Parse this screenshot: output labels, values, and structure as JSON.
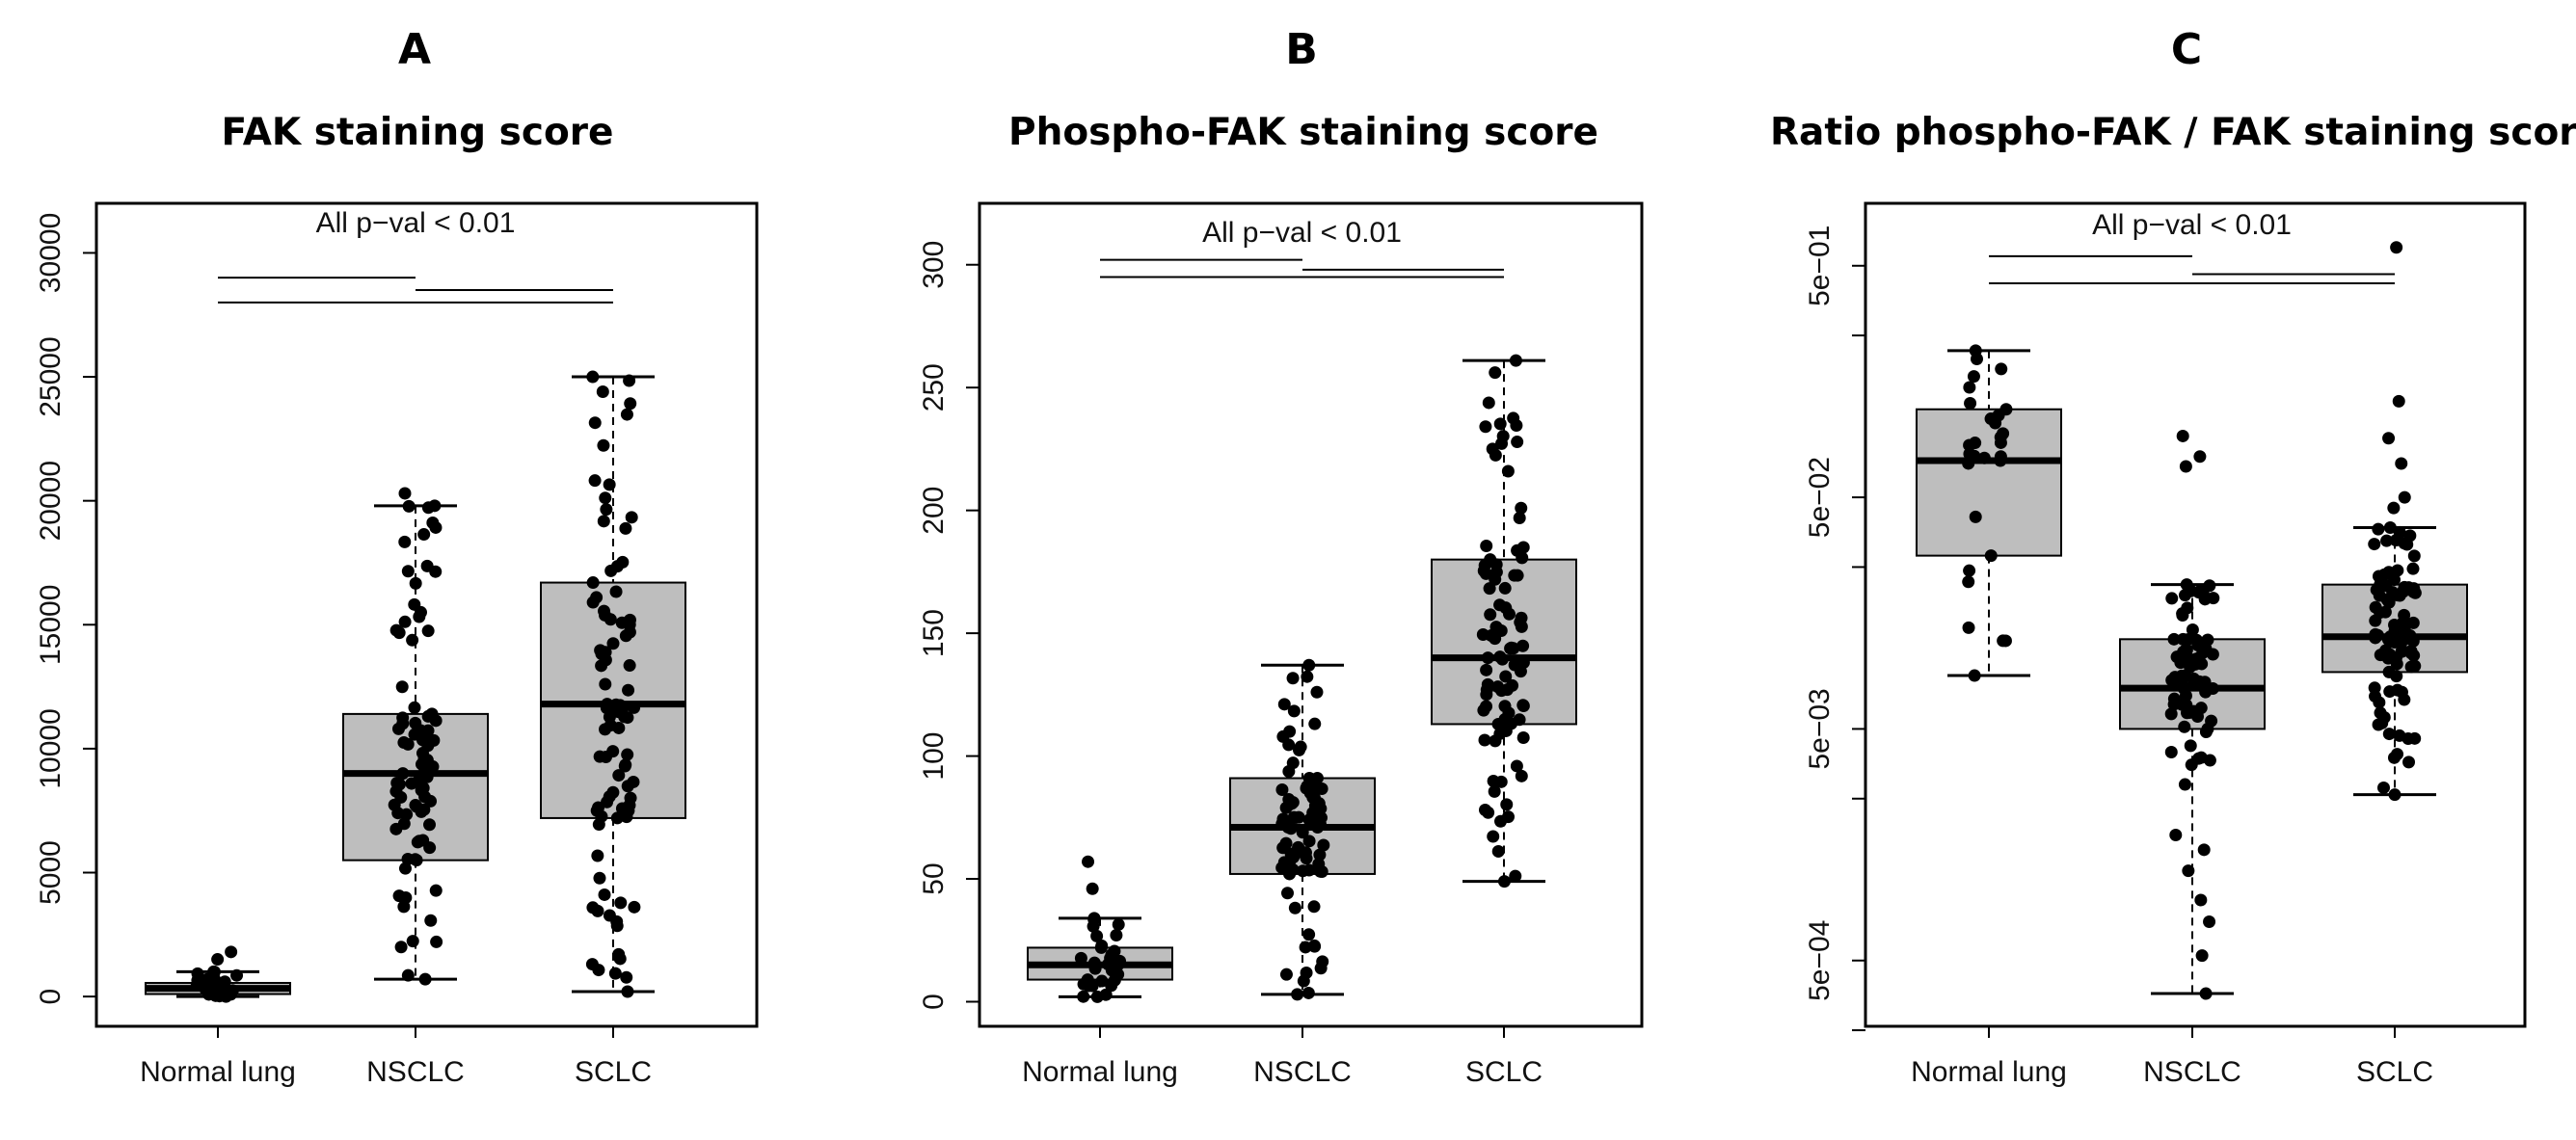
{
  "chart_data": [
    {
      "type": "boxplot",
      "panel": "A",
      "title": "FAK staining score",
      "scale": "linear",
      "ylim": [
        -1200,
        32000
      ],
      "yticks": [
        0,
        5000,
        10000,
        15000,
        20000,
        25000,
        30000
      ],
      "ytick_labels": [
        "0",
        "5000",
        "10000",
        "15000",
        "20000",
        "25000",
        "30000"
      ],
      "categories": [
        "Normal lung",
        "NSCLC",
        "SCLC"
      ],
      "annotation": "All p−val < 0.01",
      "brackets": [
        {
          "from": 0,
          "to": 1,
          "y": 29000
        },
        {
          "from": 1,
          "to": 2,
          "y": 28500
        },
        {
          "from": 0,
          "to": 2,
          "y": 28000
        }
      ],
      "boxes": [
        {
          "category": "Normal lung",
          "q1": 100,
          "median": 330,
          "q3": 550,
          "wl": 0,
          "wh": 1000,
          "outliers": [
            1500,
            1800
          ],
          "n": 30
        },
        {
          "category": "NSCLC",
          "q1": 5500,
          "median": 9000,
          "q3": 11400,
          "wl": 700,
          "wh": 19800,
          "outliers": [
            20300
          ],
          "n": 85
        },
        {
          "category": "SCLC",
          "q1": 7200,
          "median": 11800,
          "q3": 16700,
          "wl": 200,
          "wh": 25000,
          "outliers": [],
          "n": 90
        }
      ]
    },
    {
      "type": "boxplot",
      "panel": "B",
      "title": "Phospho-FAK staining score",
      "scale": "linear",
      "ylim": [
        -10,
        325
      ],
      "yticks": [
        0,
        50,
        100,
        150,
        200,
        250,
        300
      ],
      "ytick_labels": [
        "0",
        "50",
        "100",
        "150",
        "200",
        "250",
        "300"
      ],
      "categories": [
        "Normal lung",
        "NSCLC",
        "SCLC"
      ],
      "annotation": "All p−val < 0.01",
      "brackets": [
        {
          "from": 0,
          "to": 1,
          "y": 302
        },
        {
          "from": 1,
          "to": 2,
          "y": 298
        },
        {
          "from": 0,
          "to": 2,
          "y": 295
        }
      ],
      "boxes": [
        {
          "category": "Normal lung",
          "q1": 9,
          "median": 15,
          "q3": 22,
          "wl": 2,
          "wh": 34,
          "outliers": [
            46,
            57
          ],
          "n": 30
        },
        {
          "category": "NSCLC",
          "q1": 52,
          "median": 71,
          "q3": 91,
          "wl": 3,
          "wh": 137,
          "outliers": [],
          "n": 85
        },
        {
          "category": "SCLC",
          "q1": 113,
          "median": 140,
          "q3": 180,
          "wl": 49,
          "wh": 261,
          "outliers": [],
          "n": 90
        }
      ]
    },
    {
      "type": "boxplot",
      "panel": "C",
      "title": "Ratio phospho-FAK / FAK staining score",
      "scale": "log10",
      "ylim": [
        0.00026,
        0.93
      ],
      "yticks": [
        0.0005,
        0.005,
        0.05,
        0.5
      ],
      "ytick_labels": [
        "5e−04",
        "5e−03",
        "5e−02",
        "5e−01"
      ],
      "minor_yticks": [
        0.00025,
        0.0025,
        0.025,
        0.25
      ],
      "categories": [
        "Normal lung",
        "NSCLC",
        "SCLC"
      ],
      "annotation": "All p−val < 0.01",
      "brackets": [
        {
          "from": 0,
          "to": 1,
          "y": 0.55
        },
        {
          "from": 1,
          "to": 2,
          "y": 0.46
        },
        {
          "from": 0,
          "to": 2,
          "y": 0.42
        }
      ],
      "boxes": [
        {
          "category": "Normal lung",
          "q1": 0.028,
          "median": 0.072,
          "q3": 0.12,
          "wl": 0.0085,
          "wh": 0.215,
          "outliers": [],
          "n": 30
        },
        {
          "category": "NSCLC",
          "q1": 0.005,
          "median": 0.0075,
          "q3": 0.0122,
          "wl": 0.00036,
          "wh": 0.021,
          "outliers": [
            0.092,
            0.075,
            0.068
          ],
          "n": 85
        },
        {
          "category": "SCLC",
          "q1": 0.0088,
          "median": 0.0125,
          "q3": 0.021,
          "wl": 0.0026,
          "wh": 0.037,
          "outliers": [
            0.13,
            0.09,
            0.07,
            0.05,
            0.045,
            0.6
          ],
          "n": 90
        }
      ]
    }
  ]
}
